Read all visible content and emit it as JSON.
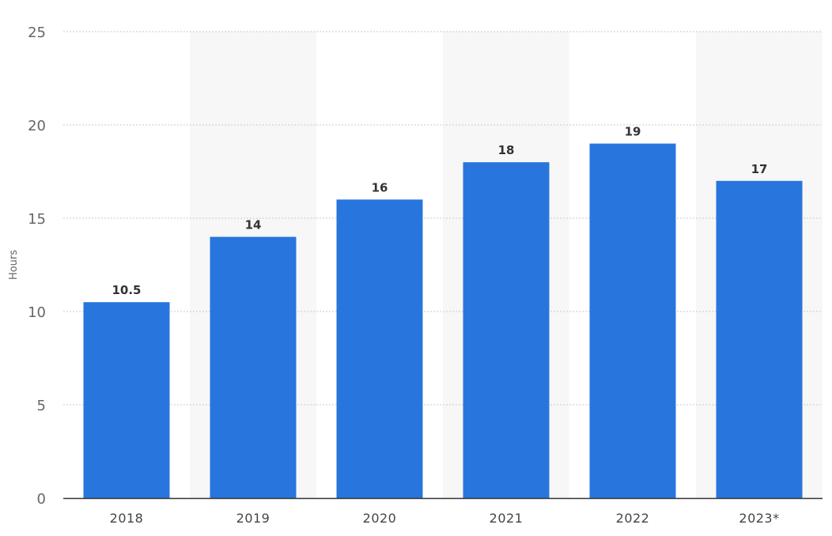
{
  "chart_data": {
    "type": "bar",
    "title": "",
    "xlabel": "",
    "ylabel": "Hours",
    "categories": [
      "2018",
      "2019",
      "2020",
      "2021",
      "2022",
      "2023*"
    ],
    "values": [
      10.5,
      14,
      16,
      18,
      19,
      17
    ],
    "data_labels": [
      "10.5",
      "14",
      "16",
      "18",
      "19",
      "17"
    ],
    "ylim": [
      0,
      25
    ],
    "yticks": [
      0,
      5,
      10,
      15,
      20,
      25
    ],
    "grid": true,
    "legend": "none",
    "colors": {
      "bar": "#2876dd",
      "band": "#f7f7f7",
      "grid": "#c8c8c8",
      "axis": "#333333"
    }
  }
}
